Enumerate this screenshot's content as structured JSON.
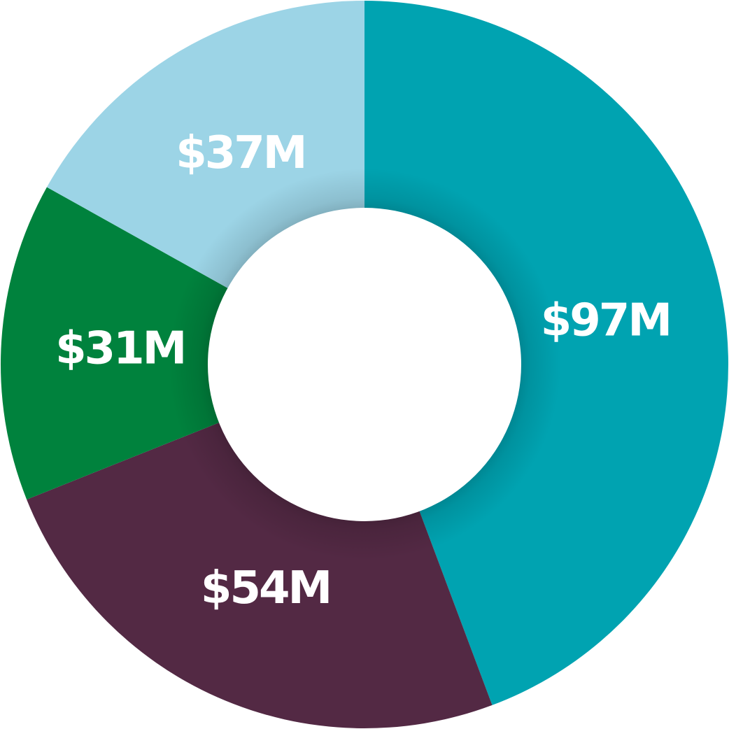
{
  "chart_data": {
    "type": "pie",
    "variant": "donut",
    "title": "",
    "slices": [
      {
        "label": "$97M",
        "value": 97,
        "color": "#00a3b1"
      },
      {
        "label": "$54M",
        "value": 54,
        "color": "#532944"
      },
      {
        "label": "$31M",
        "value": 31,
        "color": "#00823d"
      },
      {
        "label": "$37M",
        "value": 37,
        "color": "#9cd4e6"
      }
    ],
    "legend": "none"
  }
}
